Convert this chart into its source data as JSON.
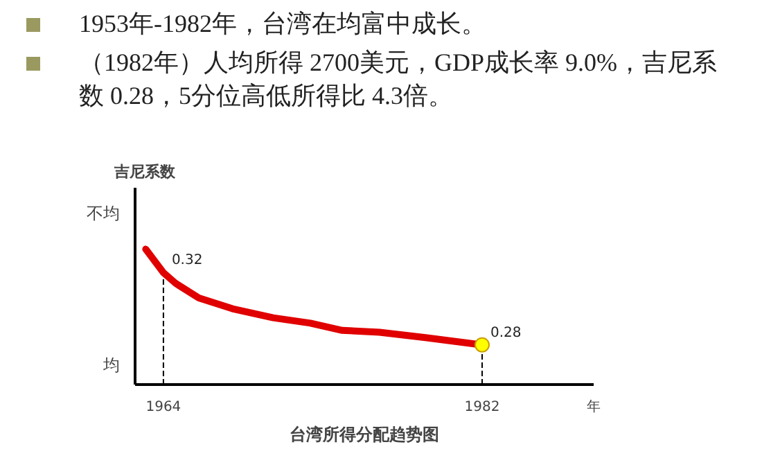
{
  "chart_data": {
    "type": "line",
    "title": "台湾所得分配趋势图",
    "xlabel": "年",
    "ylabel": "吉尼系数",
    "annotations": [
      "1953年-1982年，台湾在均富中成长。",
      "（1982年）人均所得 2700美元，GDP成长率 9.0%，吉尼系数 0.28，5分位高低所得比 4.3倍。",
      "不均",
      "均"
    ],
    "xlim": [
      1962.4,
      1988.3
    ],
    "xticks": [
      1964,
      1982
    ],
    "ylim": [
      0.258,
      0.367
    ],
    "grid": false,
    "marker": "none",
    "line_style": "solid",
    "series": [
      {
        "color": "#e00000",
        "x": [
          1963.0,
          1964.0,
          1964.7,
          1966.0,
          1967.9,
          1970.2,
          1972.3,
          1974.1,
          1976.2,
          1978.8,
          1982.0
        ],
        "values": [
          0.333,
          0.32,
          0.314,
          0.306,
          0.3,
          0.295,
          0.292,
          0.288,
          0.287,
          0.284,
          0.28
        ],
        "value_labels": [
          null,
          "0.32",
          null,
          null,
          null,
          null,
          null,
          null,
          null,
          null,
          "0.28"
        ]
      },
      {
        "type": "scatter",
        "marker": "circle",
        "color": "#ffff00",
        "x": [
          1982.0
        ],
        "values": [
          0.28
        ]
      }
    ],
    "ref_lines": [
      {
        "axis": "x",
        "value": 1964,
        "label": null,
        "line_style": "dashed",
        "color": "#000000"
      },
      {
        "axis": "x",
        "value": 1982,
        "label": null,
        "line_style": "dashed",
        "color": "#000000"
      }
    ]
  }
}
